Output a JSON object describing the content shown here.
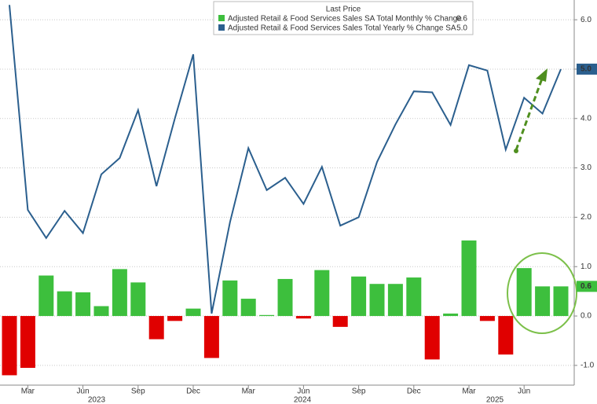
{
  "chart_data": {
    "type": "bar_line",
    "legend_title": "Last Price",
    "categories": [
      null,
      "Mar",
      null,
      null,
      "Jun",
      null,
      null,
      "Sep",
      null,
      null,
      "Dec",
      null,
      null,
      "Mar",
      null,
      null,
      "Jun",
      null,
      null,
      "Sep",
      null,
      null,
      "Dec",
      null,
      null,
      "Mar",
      null,
      null,
      "Jun",
      null,
      null
    ],
    "years": [
      "2023",
      "2024",
      "2025"
    ],
    "series": [
      {
        "name": "Adjusted Retail & Food Services Sales SA Total Monthly % Change",
        "kind": "bar",
        "color": "#3dbf3d",
        "negative_color": "#e00000",
        "last_value_label": "0.6",
        "values": [
          -1.2,
          -1.05,
          0.82,
          0.5,
          0.48,
          0.2,
          0.95,
          0.68,
          -0.47,
          -0.1,
          0.15,
          -0.85,
          0.72,
          0.35,
          0.02,
          0.75,
          -0.05,
          0.93,
          -0.22,
          0.8,
          0.65,
          0.65,
          0.78,
          -0.88,
          0.05,
          1.53,
          -0.1,
          -0.78,
          0.97,
          0.6,
          0.6
        ]
      },
      {
        "name": "Adjusted Retail & Food Services Sales Total Yearly % Change SA",
        "kind": "line",
        "color": "#2b5f8e",
        "last_value_label": "5.0",
        "values": [
          6.3,
          2.15,
          1.58,
          2.13,
          1.68,
          2.87,
          3.2,
          4.17,
          2.63,
          4.0,
          5.3,
          0.05,
          1.9,
          3.4,
          2.55,
          2.8,
          2.27,
          3.02,
          1.83,
          2.0,
          3.12,
          3.88,
          4.55,
          4.53,
          3.87,
          5.08,
          4.97,
          3.37,
          4.42,
          4.1,
          5.0
        ]
      }
    ],
    "ylim": [
      -1.4,
      6.4
    ],
    "yticks": [
      {
        "value": -1,
        "label": "-1.0"
      },
      {
        "value": 0,
        "label": "0.0"
      },
      {
        "value": 1,
        "label": "1.0"
      },
      {
        "value": 2,
        "label": "2.0"
      },
      {
        "value": 3,
        "label": "3.0"
      },
      {
        "value": 4,
        "label": "4.0"
      },
      {
        "value": 5,
        "label": "5.0"
      },
      {
        "value": 6,
        "label": "6.0"
      }
    ],
    "grid": true
  }
}
